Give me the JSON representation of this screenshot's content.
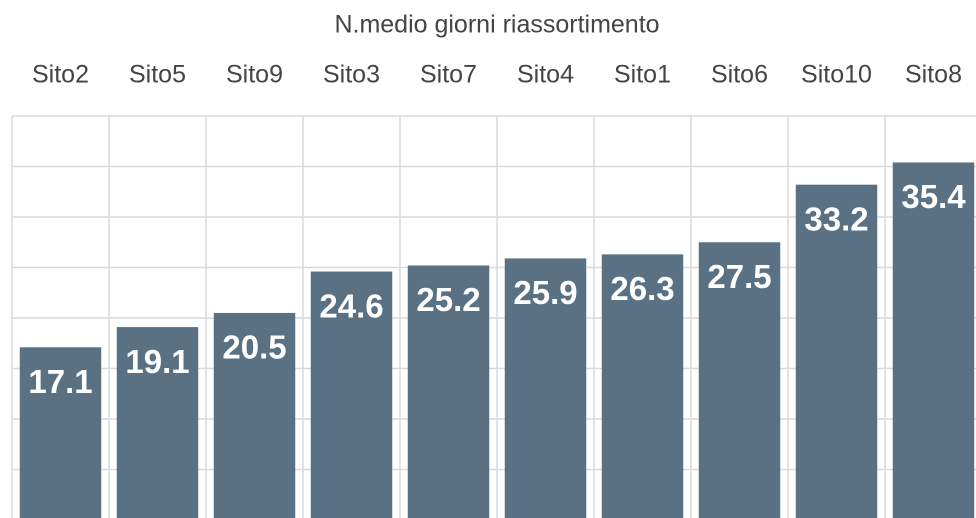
{
  "chart_data": {
    "type": "bar",
    "title": "N.medio giorni riassortimento",
    "categories": [
      "Sito2",
      "Sito5",
      "Sito9",
      "Sito3",
      "Sito7",
      "Sito4",
      "Sito1",
      "Sito6",
      "Sito10",
      "Sito8"
    ],
    "values": [
      17.1,
      19.1,
      20.5,
      24.6,
      25.2,
      25.9,
      26.3,
      27.5,
      33.2,
      35.4
    ],
    "color": "#5a7184",
    "ylim": [
      0,
      40
    ],
    "yticks": [
      0,
      5,
      10,
      15,
      20,
      25,
      30,
      35,
      40
    ],
    "grid": true
  }
}
